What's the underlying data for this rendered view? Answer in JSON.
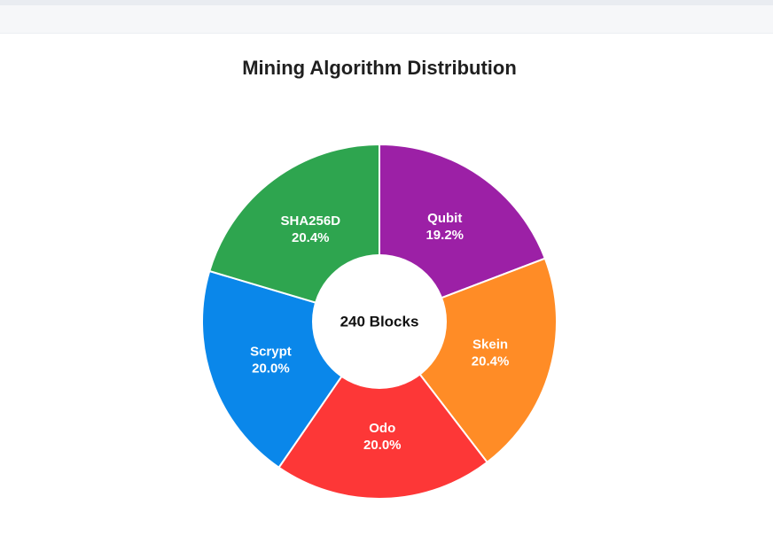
{
  "chart_data": {
    "type": "pie",
    "variant": "donut",
    "title": "Mining Algorithm Distribution",
    "center_text": "240 Blocks",
    "slices": [
      {
        "label": "Qubit",
        "percent_label": "19.2%",
        "value": 19.2,
        "color": "#9c20a6"
      },
      {
        "label": "Skein",
        "percent_label": "20.4%",
        "value": 20.4,
        "color": "#ff8c26"
      },
      {
        "label": "Odo",
        "percent_label": "20.0%",
        "value": 20.0,
        "color": "#fd3737"
      },
      {
        "label": "Scrypt",
        "percent_label": "20.0%",
        "value": 20.0,
        "color": "#0a87ea"
      },
      {
        "label": "SHA256D",
        "percent_label": "20.4%",
        "value": 20.4,
        "color": "#2ea54f"
      }
    ],
    "start_angle": "top",
    "direction": "clockwise",
    "legend": "none"
  }
}
